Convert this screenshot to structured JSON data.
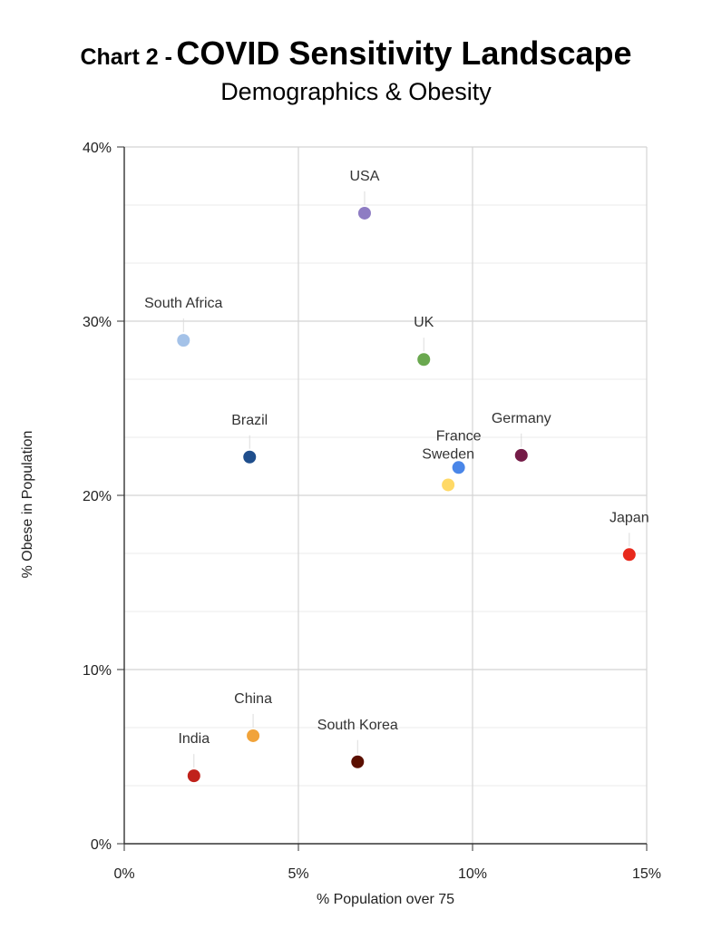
{
  "title_prefix": "Chart 2 -",
  "title": "COVID Sensitivity Landscape",
  "subtitle": "Demographics & Obesity",
  "chart_data": {
    "type": "scatter",
    "title": "Chart 2 - COVID Sensitivity Landscape",
    "subtitle": "Demographics & Obesity",
    "xlabel": "% Population over 75",
    "ylabel": "% Obese in Population",
    "xlim": [
      0,
      15
    ],
    "ylim": [
      0,
      40
    ],
    "x_ticks": [
      "0%",
      "5%",
      "10%",
      "15%"
    ],
    "y_ticks": [
      "0%",
      "10%",
      "20%",
      "30%",
      "40%"
    ],
    "grid": true,
    "legend": "none",
    "points": [
      {
        "label": "USA",
        "x": 6.9,
        "y": 36.2,
        "color": "#8e7cc3"
      },
      {
        "label": "South Africa",
        "x": 1.7,
        "y": 28.9,
        "color": "#a4c2e8"
      },
      {
        "label": "UK",
        "x": 8.6,
        "y": 27.8,
        "color": "#6aa84f"
      },
      {
        "label": "Brazil",
        "x": 3.6,
        "y": 22.2,
        "color": "#1f4e8c"
      },
      {
        "label": "Germany",
        "x": 11.4,
        "y": 22.3,
        "color": "#741b47"
      },
      {
        "label": "France",
        "x": 9.6,
        "y": 21.6,
        "color": "#4a86e8"
      },
      {
        "label": "Sweden",
        "x": 9.3,
        "y": 20.6,
        "color": "#ffd966"
      },
      {
        "label": "Japan",
        "x": 14.5,
        "y": 16.6,
        "color": "#e8291c"
      },
      {
        "label": "China",
        "x": 3.7,
        "y": 6.2,
        "color": "#f1a33a"
      },
      {
        "label": "South Korea",
        "x": 6.7,
        "y": 4.7,
        "color": "#5b0f00"
      },
      {
        "label": "India",
        "x": 2.0,
        "y": 3.9,
        "color": "#c0221b"
      }
    ]
  }
}
